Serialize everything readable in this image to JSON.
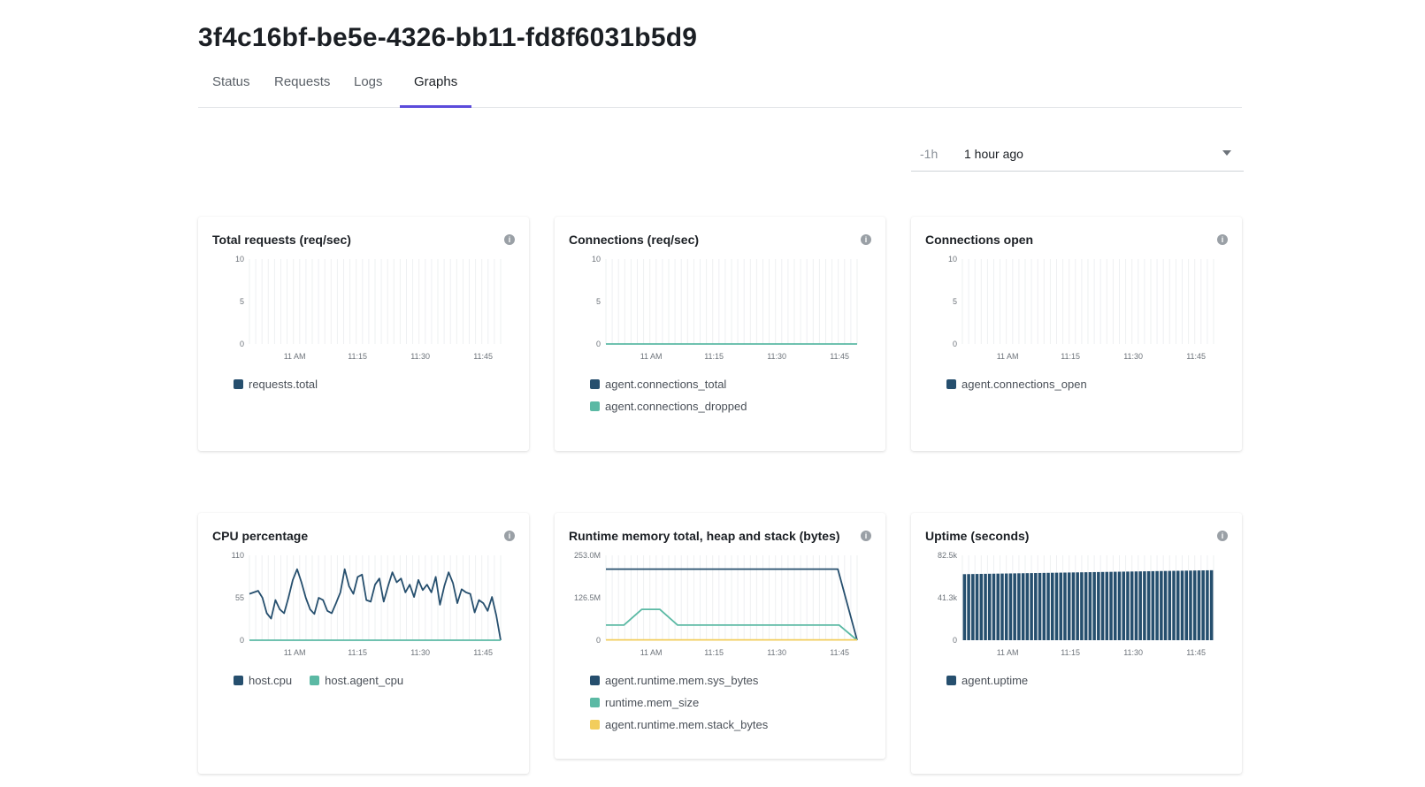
{
  "page": {
    "title": "3f4c16bf-be5e-4326-bb11-fd8f6031b5d9"
  },
  "tabs": [
    {
      "label": "Status",
      "active": false
    },
    {
      "label": "Requests",
      "active": false
    },
    {
      "label": "Logs",
      "active": false
    },
    {
      "label": "Graphs",
      "active": true
    }
  ],
  "time_range": {
    "short": "-1h",
    "label": "1 hour ago"
  },
  "colors": {
    "navy": "#264f6e",
    "teal": "#5bb9a4",
    "yellow": "#f2cd5c",
    "accent": "#5b4bdb"
  },
  "info_icon": "info-icon",
  "cards": [
    {
      "title": "Total requests (req/sec)",
      "legend": [
        {
          "label": "requests.total",
          "color": "#264f6e"
        }
      ],
      "legend_layout": "column"
    },
    {
      "title": "Connections (req/sec)",
      "legend": [
        {
          "label": "agent.connections_total",
          "color": "#264f6e"
        },
        {
          "label": "agent.connections_dropped",
          "color": "#5bb9a4"
        }
      ],
      "legend_layout": "column"
    },
    {
      "title": "Connections open",
      "legend": [
        {
          "label": "agent.connections_open",
          "color": "#264f6e"
        }
      ],
      "legend_layout": "column"
    },
    {
      "title": "CPU percentage",
      "legend": [
        {
          "label": "host.cpu",
          "color": "#264f6e"
        },
        {
          "label": "host.agent_cpu",
          "color": "#5bb9a4"
        }
      ],
      "legend_layout": "row"
    },
    {
      "title": "Runtime memory total, heap and stack (bytes)",
      "legend": [
        {
          "label": "agent.runtime.mem.sys_bytes",
          "color": "#264f6e"
        },
        {
          "label": "runtime.mem_size",
          "color": "#5bb9a4"
        },
        {
          "label": "agent.runtime.mem.stack_bytes",
          "color": "#f2cd5c"
        }
      ],
      "legend_layout": "column"
    },
    {
      "title": "Uptime (seconds)",
      "legend": [
        {
          "label": "agent.uptime",
          "color": "#264f6e"
        }
      ],
      "legend_layout": "column"
    }
  ],
  "chart_data": [
    {
      "type": "line",
      "x_ticks": [
        "11 AM",
        "11:15",
        "11:30",
        "11:45"
      ],
      "y_ticks": [
        "10",
        "5",
        "0"
      ],
      "ylim": [
        0,
        10
      ],
      "grid": true,
      "series": []
    },
    {
      "type": "line",
      "x_ticks": [
        "11 AM",
        "11:15",
        "11:30",
        "11:45"
      ],
      "y_ticks": [
        "10",
        "5",
        "0"
      ],
      "ylim": [
        0,
        10
      ],
      "grid": true,
      "series": [
        {
          "color": "#5bb9a4",
          "values": [
            0,
            0
          ]
        }
      ]
    },
    {
      "type": "line",
      "x_ticks": [
        "11 AM",
        "11:15",
        "11:30",
        "11:45"
      ],
      "y_ticks": [
        "10",
        "5",
        "0"
      ],
      "ylim": [
        0,
        10
      ],
      "grid": true,
      "series": []
    },
    {
      "type": "line",
      "x_ticks": [
        "11 AM",
        "11:15",
        "11:30",
        "11:45"
      ],
      "y_ticks": [
        "110",
        "55",
        "0"
      ],
      "ylim": [
        0,
        110
      ],
      "grid": true,
      "series": [
        {
          "color": "#264f6e",
          "values": [
            60,
            62,
            64,
            55,
            35,
            28,
            52,
            40,
            35,
            55,
            78,
            92,
            75,
            55,
            40,
            34,
            55,
            52,
            38,
            35,
            48,
            62,
            92,
            70,
            60,
            82,
            85,
            52,
            50,
            72,
            80,
            50,
            70,
            88,
            75,
            80,
            62,
            72,
            56,
            78,
            65,
            72,
            62,
            82,
            46,
            70,
            88,
            74,
            48,
            66,
            62,
            60,
            36,
            52,
            48,
            38,
            56,
            32,
            0
          ]
        },
        {
          "color": "#5bb9a4",
          "values": [
            0,
            0
          ]
        }
      ]
    },
    {
      "type": "line",
      "x_ticks": [
        "11 AM",
        "11:15",
        "11:30",
        "11:45"
      ],
      "y_ticks": [
        "253.0M",
        "126.5M",
        "0"
      ],
      "ylim": [
        0,
        253000000
      ],
      "grid": true,
      "series": [
        {
          "color": "#264f6e",
          "values": [
            212000000,
            212000000,
            212000000,
            212000000,
            212000000,
            212000000,
            212000000,
            212000000,
            212000000,
            212000000,
            212000000,
            212000000,
            212000000,
            0
          ]
        },
        {
          "color": "#5bb9a4",
          "values": [
            45000000,
            45000000,
            92000000,
            92000000,
            45000000,
            45000000,
            45000000,
            45000000,
            45000000,
            45000000,
            45000000,
            45000000,
            45000000,
            45000000,
            0
          ]
        },
        {
          "color": "#f2cd5c",
          "values": [
            1000000,
            1000000
          ]
        }
      ]
    },
    {
      "type": "bar",
      "x_ticks": [
        "11 AM",
        "11:15",
        "11:30",
        "11:45"
      ],
      "y_ticks": [
        "82.5k",
        "41.3k",
        "0"
      ],
      "ylim": [
        0,
        82500
      ],
      "grid": true,
      "series": [
        {
          "color": "#264f6e",
          "start": 64200,
          "end": 68000,
          "count": 60
        }
      ]
    }
  ]
}
